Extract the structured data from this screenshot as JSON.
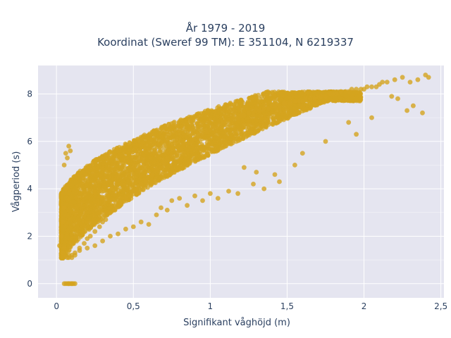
{
  "chart_data": {
    "type": "scatter",
    "title_lines": [
      "År 1979 - 2019",
      "Koordinat (Sweref 99 TM): E 351104, N 6219337"
    ],
    "xlabel": "Signifikant våghöjd (m)",
    "ylabel": "Vågperiod (s)",
    "xlim": [
      -0.12,
      2.52
    ],
    "ylim": [
      -0.6,
      9.2
    ],
    "xticks": [
      0,
      0.5,
      1,
      1.5,
      2,
      2.5
    ],
    "xtick_labels": [
      "0",
      "0,5",
      "1",
      "1,5",
      "2",
      "2,5"
    ],
    "yticks": [
      0,
      2,
      4,
      6,
      8
    ],
    "ytick_labels": [
      "0",
      "2",
      "4",
      "6",
      "8"
    ],
    "grid": true,
    "colors": {
      "marker": "#d4a41f",
      "plot_bg": "#e5e5f0",
      "grid": "#ffffff",
      "text": "#2a3f5f"
    },
    "series": [
      {
        "marker_color": "#d4a41f",
        "x": [
          0.05,
          0.07,
          0.08,
          0.09,
          0.1,
          0.11,
          0.06,
          0.08,
          0.1,
          0.12,
          0.02,
          0.03,
          0.04,
          0.05,
          0.06,
          0.04,
          0.05,
          0.06,
          0.07,
          0.08,
          0.05,
          0.06,
          0.07,
          0.08,
          0.09,
          0.1,
          0.12,
          0.15,
          0.18,
          0.2,
          0.22,
          0.25,
          0.28,
          0.3,
          0.32,
          0.35,
          0.38,
          0.4,
          0.42,
          0.45,
          0.48,
          0.5,
          0.52,
          0.55,
          0.58,
          0.6,
          0.62,
          0.65,
          0.68,
          0.7,
          0.72,
          0.75,
          0.78,
          0.8,
          0.82,
          0.85,
          0.88,
          0.9,
          0.92,
          0.95,
          0.98,
          1.0,
          1.02,
          1.05,
          1.08,
          1.1,
          1.12,
          1.15,
          1.18,
          1.2,
          1.22,
          1.25,
          1.28,
          1.3,
          1.32,
          1.35,
          1.38,
          1.4,
          1.42,
          1.45,
          1.48,
          1.5,
          1.52,
          1.55,
          1.58,
          1.6,
          1.62,
          1.65,
          1.68,
          1.7,
          1.72,
          1.75,
          1.78,
          1.8,
          1.82,
          1.85,
          1.88,
          1.9,
          1.92,
          1.95,
          1.98,
          2.0,
          2.02,
          2.05,
          2.08,
          2.1,
          2.12,
          2.15,
          2.2,
          2.25,
          2.3,
          2.35,
          2.4,
          2.42,
          2.28,
          2.32,
          2.38,
          2.22,
          2.18,
          2.05,
          1.95,
          1.9,
          1.75,
          1.6,
          1.55,
          1.45,
          1.42,
          1.35,
          1.3,
          1.28,
          1.22,
          1.18,
          1.12,
          1.05,
          1.0,
          0.95,
          0.9,
          0.85,
          0.8,
          0.75,
          0.72,
          0.68,
          0.65,
          0.6,
          0.55,
          0.5,
          0.45,
          0.4,
          0.35,
          0.3,
          0.25,
          0.2,
          0.15,
          0.12,
          0.1,
          0.08
        ],
        "y": [
          0,
          0,
          0,
          0,
          0,
          0,
          0,
          0,
          0,
          0,
          1.6,
          2.0,
          2.6,
          3.2,
          4.0,
          1.3,
          1.5,
          1.2,
          1.1,
          1.2,
          5.0,
          5.5,
          5.3,
          5.8,
          5.6,
          1.1,
          1.2,
          1.5,
          1.7,
          1.9,
          2.0,
          2.2,
          2.4,
          2.6,
          2.7,
          3.0,
          3.1,
          3.3,
          3.4,
          3.6,
          3.7,
          3.9,
          4.0,
          4.2,
          4.3,
          4.5,
          4.6,
          4.8,
          4.9,
          5.1,
          5.2,
          5.4,
          5.5,
          5.6,
          5.7,
          5.9,
          6.0,
          6.1,
          6.2,
          6.3,
          6.4,
          6.5,
          6.6,
          6.7,
          6.8,
          6.8,
          6.9,
          7.0,
          7.0,
          7.1,
          7.1,
          7.2,
          7.2,
          7.3,
          7.3,
          7.4,
          7.4,
          7.5,
          7.5,
          7.5,
          7.6,
          7.6,
          7.6,
          7.7,
          7.7,
          7.7,
          7.8,
          7.8,
          7.8,
          7.9,
          7.9,
          7.9,
          8.0,
          8.0,
          8.0,
          8.1,
          8.1,
          8.1,
          8.2,
          8.2,
          8.2,
          8.2,
          8.3,
          8.3,
          8.3,
          8.4,
          8.5,
          8.5,
          8.6,
          8.7,
          8.5,
          8.6,
          8.8,
          8.7,
          7.3,
          7.5,
          7.2,
          7.8,
          7.9,
          7.0,
          6.3,
          6.8,
          6.0,
          5.5,
          5.0,
          4.3,
          4.6,
          4.0,
          4.7,
          4.2,
          4.9,
          3.8,
          3.9,
          3.6,
          3.8,
          3.5,
          3.7,
          3.3,
          3.6,
          3.5,
          3.1,
          3.2,
          2.9,
          2.5,
          2.6,
          2.4,
          2.3,
          2.1,
          2.0,
          1.8,
          1.6,
          1.5,
          1.4,
          1.3,
          1.2,
          1.1
        ]
      }
    ]
  }
}
